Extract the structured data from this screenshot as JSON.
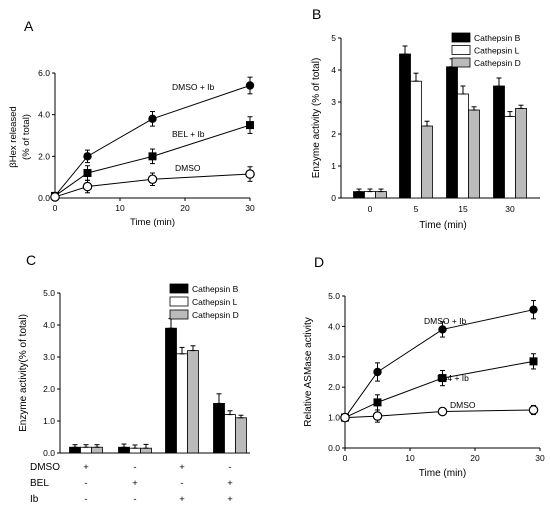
{
  "chart_data": [
    {
      "panel": "A",
      "type": "line",
      "xlabel": "Time (min)",
      "ylabel_line1": "βHex released",
      "ylabel_line2": "(% of total)",
      "xlim": [
        0,
        30
      ],
      "ylim": [
        0,
        6
      ],
      "xticks": [
        0,
        10,
        20,
        30
      ],
      "yticks": [
        0,
        2,
        4,
        6
      ],
      "x": [
        0,
        5,
        15,
        30
      ],
      "series": [
        {
          "name": "DMSO + Ib",
          "marker": "circle-filled",
          "values": [
            0.1,
            2.0,
            3.8,
            5.4
          ],
          "err": [
            0.05,
            0.3,
            0.35,
            0.4
          ]
        },
        {
          "name": "BEL + Ib",
          "marker": "square-filled",
          "values": [
            0.1,
            1.2,
            2.0,
            3.5
          ],
          "err": [
            0.05,
            0.35,
            0.35,
            0.4
          ]
        },
        {
          "name": "DMSO",
          "marker": "circle-open",
          "values": [
            0.05,
            0.55,
            0.9,
            1.15
          ],
          "err": [
            0.05,
            0.3,
            0.3,
            0.35
          ]
        }
      ]
    },
    {
      "panel": "B",
      "type": "bar",
      "xlabel": "Time (min)",
      "ylabel": "Enzyme activity (% of total)",
      "ylim": [
        0,
        5
      ],
      "yticks": [
        0,
        1,
        2,
        3,
        4,
        5
      ],
      "categories": [
        "0",
        "5",
        "15",
        "30"
      ],
      "legend_position": "top-right",
      "series": [
        {
          "name": "Cathepsin  B",
          "fill": "#000000",
          "values": [
            0.2,
            4.5,
            4.1,
            3.5
          ],
          "err": [
            0.08,
            0.25,
            0.25,
            0.25
          ]
        },
        {
          "name": "Cathepsin  L",
          "fill": "#ffffff",
          "values": [
            0.2,
            3.65,
            3.25,
            2.55
          ],
          "err": [
            0.08,
            0.25,
            0.25,
            0.15
          ]
        },
        {
          "name": "Cathepsin  D",
          "fill": "#bbbbbb",
          "values": [
            0.2,
            2.25,
            2.75,
            2.8
          ],
          "err": [
            0.08,
            0.15,
            0.1,
            0.1
          ]
        }
      ]
    },
    {
      "panel": "C",
      "type": "bar",
      "ylabel": "Enzyme activity(% of total)",
      "ylim": [
        0,
        5
      ],
      "yticks": [
        "0.0",
        "1.0",
        "2.0",
        "3.0",
        "4.0",
        "5.0"
      ],
      "legend_position": "top-right",
      "conditions": [
        {
          "label": "DMSO",
          "values": [
            "+",
            "-",
            "+",
            "-"
          ]
        },
        {
          "label": "BEL",
          "values": [
            "-",
            "+",
            "-",
            "+"
          ]
        },
        {
          "label": "Ib",
          "values": [
            "-",
            "-",
            "+",
            "+"
          ]
        }
      ],
      "series": [
        {
          "name": "Cathepsin  B",
          "fill": "#000000",
          "values": [
            0.18,
            0.18,
            3.9,
            1.55
          ],
          "err": [
            0.08,
            0.1,
            0.3,
            0.3
          ]
        },
        {
          "name": "Cathepsin  L",
          "fill": "#ffffff",
          "values": [
            0.18,
            0.15,
            3.1,
            1.2
          ],
          "err": [
            0.08,
            0.1,
            0.2,
            0.12
          ]
        },
        {
          "name": "Cathepsin  D",
          "fill": "#bbbbbb",
          "values": [
            0.18,
            0.15,
            3.2,
            1.1
          ],
          "err": [
            0.08,
            0.12,
            0.15,
            0.08
          ]
        }
      ]
    },
    {
      "panel": "D",
      "type": "line",
      "xlabel": "Time (min)",
      "ylabel": "Relative ASMase activity",
      "xlim": [
        0,
        30
      ],
      "ylim": [
        0,
        5
      ],
      "xticks": [
        0,
        10,
        20,
        30
      ],
      "yticks": [
        "0.0",
        "1.0",
        "2.0",
        "3.0",
        "4.0",
        "5.0"
      ],
      "x": [
        0,
        5,
        15,
        29
      ],
      "series": [
        {
          "name": "DMSO + Ib",
          "marker": "circle-filled",
          "values": [
            1.0,
            2.5,
            3.9,
            4.55
          ],
          "err": [
            0.1,
            0.3,
            0.25,
            0.3
          ]
        },
        {
          "name": "E64 + Ib",
          "marker": "square-filled",
          "values": [
            1.0,
            1.5,
            2.3,
            2.85
          ],
          "err": [
            0.1,
            0.25,
            0.25,
            0.25
          ]
        },
        {
          "name": "DMSO",
          "marker": "circle-open",
          "values": [
            1.0,
            1.05,
            1.2,
            1.25
          ],
          "err": [
            0.1,
            0.2,
            0.12,
            0.15
          ]
        }
      ]
    }
  ]
}
